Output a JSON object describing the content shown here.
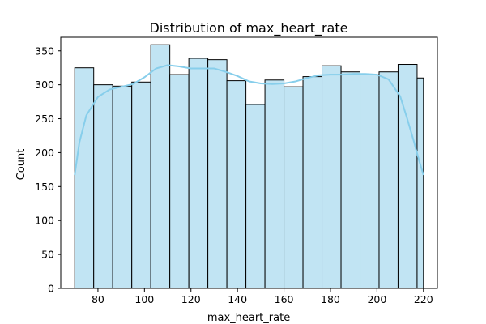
{
  "chart_data": {
    "type": "bar",
    "title": "Distribution of max_heart_rate",
    "xlabel": "max_heart_rate",
    "ylabel": "Count",
    "xlim": [
      64,
      226
    ],
    "ylim": [
      0,
      370
    ],
    "xticks": [
      80,
      100,
      120,
      140,
      160,
      180,
      200,
      220
    ],
    "yticks": [
      0,
      50,
      100,
      150,
      200,
      250,
      300,
      350
    ],
    "bin_edges": [
      70,
      78.18,
      86.36,
      94.55,
      102.73,
      110.91,
      119.09,
      127.27,
      135.45,
      143.64,
      151.82,
      160.0,
      168.18,
      176.36,
      184.55,
      192.73,
      200.91,
      209.09,
      217.27,
      220
    ],
    "bins": [
      {
        "x0": 70.0,
        "x1": 78.18,
        "count": 325
      },
      {
        "x0": 78.18,
        "x1": 86.36,
        "count": 300
      },
      {
        "x0": 86.36,
        "x1": 94.55,
        "count": 298
      },
      {
        "x0": 94.55,
        "x1": 102.73,
        "count": 304
      },
      {
        "x0": 102.73,
        "x1": 110.91,
        "count": 359
      },
      {
        "x0": 110.91,
        "x1": 119.09,
        "count": 315
      },
      {
        "x0": 119.09,
        "x1": 127.27,
        "count": 339
      },
      {
        "x0": 127.27,
        "x1": 135.45,
        "count": 337
      },
      {
        "x0": 135.45,
        "x1": 143.64,
        "count": 306
      },
      {
        "x0": 143.64,
        "x1": 151.82,
        "count": 271
      },
      {
        "x0": 151.82,
        "x1": 160.0,
        "count": 307
      },
      {
        "x0": 160.0,
        "x1": 168.18,
        "count": 297
      },
      {
        "x0": 168.18,
        "x1": 176.36,
        "count": 312
      },
      {
        "x0": 176.36,
        "x1": 184.55,
        "count": 328
      },
      {
        "x0": 184.55,
        "x1": 192.73,
        "count": 319
      },
      {
        "x0": 192.73,
        "x1": 200.91,
        "count": 315
      },
      {
        "x0": 200.91,
        "x1": 209.09,
        "count": 319
      },
      {
        "x0": 209.09,
        "x1": 217.27,
        "count": 330
      },
      {
        "x0": 217.27,
        "x1": 220.0,
        "count": 310
      }
    ],
    "kde": {
      "x": [
        70,
        72,
        75,
        80,
        85,
        90,
        95,
        100,
        105,
        110,
        115,
        120,
        125,
        130,
        135,
        140,
        145,
        150,
        155,
        160,
        165,
        170,
        175,
        180,
        185,
        190,
        195,
        200,
        205,
        210,
        213,
        216,
        218,
        220
      ],
      "y": [
        167,
        215,
        255,
        282,
        293,
        297,
        301,
        311,
        324,
        329,
        327,
        324,
        324,
        324,
        319,
        313,
        305,
        302,
        301,
        302,
        305,
        310,
        314,
        315,
        315,
        316,
        316,
        315,
        308,
        283,
        250,
        215,
        190,
        167
      ]
    },
    "colors": {
      "bar_fill": "#c1e4f3",
      "bar_edge": "#000000",
      "kde_line": "#87ceeb"
    },
    "grid": false,
    "legend": "none"
  }
}
